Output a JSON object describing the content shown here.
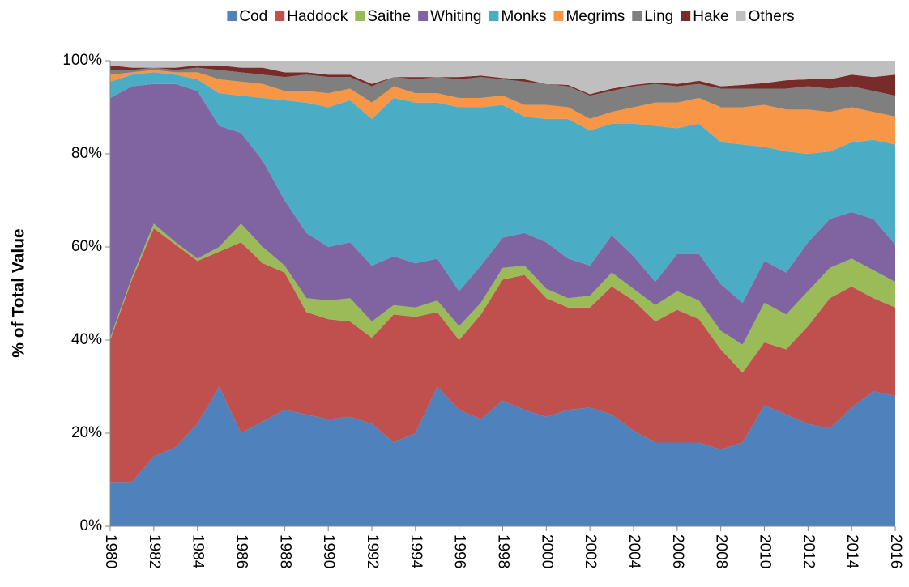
{
  "chart_data": {
    "type": "stacked_area",
    "y_label": "% of Total Value",
    "x": [
      1980,
      1981,
      1982,
      1983,
      1984,
      1985,
      1986,
      1987,
      1988,
      1989,
      1990,
      1991,
      1992,
      1993,
      1994,
      1995,
      1996,
      1997,
      1998,
      1999,
      2000,
      2001,
      2002,
      2003,
      2004,
      2005,
      2006,
      2007,
      2008,
      2009,
      2010,
      2011,
      2012,
      2013,
      2014,
      2015,
      2016
    ],
    "xlim": [
      1980,
      2016
    ],
    "xticks": [
      1980,
      1982,
      1984,
      1986,
      1988,
      1990,
      1992,
      1994,
      1996,
      1998,
      2000,
      2002,
      2004,
      2006,
      2008,
      2010,
      2012,
      2014,
      2016
    ],
    "ylim": [
      0,
      100
    ],
    "yticks": [
      {
        "value": 0,
        "label": "0%"
      },
      {
        "value": 20,
        "label": "20%"
      },
      {
        "value": 40,
        "label": "40%"
      },
      {
        "value": 60,
        "label": "60%"
      },
      {
        "value": 80,
        "label": "80%"
      },
      {
        "value": 100,
        "label": "100%"
      }
    ],
    "grid": false,
    "legend": "top",
    "series": [
      {
        "name": "Cod",
        "color": "#4f81bd",
        "values": [
          9.5,
          9.5,
          15,
          17,
          22,
          30,
          20,
          22.5,
          25,
          24,
          23,
          23.5,
          22,
          18,
          20,
          30,
          25,
          23,
          27,
          25,
          23.5,
          25,
          25.5,
          24,
          20.5,
          18,
          18,
          18,
          16.5,
          18,
          26,
          24,
          22,
          21,
          25.5,
          29,
          28
        ]
      },
      {
        "name": "Haddock",
        "color": "#c0504d",
        "values": [
          30.5,
          43.5,
          49,
          43.5,
          35,
          29,
          41,
          34,
          29.5,
          22,
          21.5,
          20.5,
          18.5,
          27.5,
          25,
          16,
          15,
          22.5,
          26,
          29,
          25.5,
          22,
          21.5,
          27.5,
          28,
          26,
          28.5,
          26.5,
          21.5,
          15,
          13.5,
          14,
          21,
          28,
          26,
          20,
          19
        ]
      },
      {
        "name": "Saithe",
        "color": "#9bbb59",
        "values": [
          0.5,
          0.5,
          1,
          0.5,
          0.5,
          1,
          4,
          3.5,
          1.5,
          3,
          4,
          5,
          3.5,
          2,
          2,
          2.5,
          3,
          2.5,
          2.5,
          2,
          2,
          2,
          2.5,
          3,
          2.5,
          3.5,
          4,
          4,
          4,
          6,
          8.5,
          7.5,
          7.5,
          6.5,
          6,
          6,
          5.5
        ]
      },
      {
        "name": "Whiting",
        "color": "#8064a2",
        "values": [
          51.5,
          41,
          30,
          34,
          36,
          26,
          19.5,
          18.5,
          14,
          14,
          11.5,
          12,
          12,
          10.5,
          9.5,
          9,
          7.5,
          8,
          6.5,
          7,
          10,
          8.5,
          6.5,
          8,
          7,
          5,
          8,
          10,
          10,
          9,
          9,
          9,
          10.5,
          10.5,
          10,
          11,
          8
        ]
      },
      {
        "name": "Monks",
        "color": "#4bacc6",
        "values": [
          3.5,
          2.5,
          2.5,
          2,
          2.5,
          7,
          8,
          13.5,
          21.5,
          28,
          30,
          30.5,
          31.5,
          34,
          34.5,
          33.5,
          39.5,
          34,
          28.5,
          25,
          26.5,
          30,
          29,
          24,
          28.5,
          33.5,
          27,
          28,
          30.5,
          34,
          24.5,
          26,
          19,
          14.5,
          15,
          17,
          21.5
        ]
      },
      {
        "name": "Megrims",
        "color": "#f79646",
        "values": [
          1.5,
          0.5,
          0.5,
          0.5,
          1.5,
          3,
          3,
          3,
          2,
          2.5,
          3,
          2.5,
          3.5,
          2.5,
          2,
          2,
          2,
          2,
          2,
          2.5,
          3,
          2.5,
          2.5,
          2.5,
          3.5,
          5,
          5.5,
          5.5,
          7.5,
          8,
          9,
          9,
          9.5,
          8.5,
          7.5,
          6,
          6
        ]
      },
      {
        "name": "Ling",
        "color": "#7f7f7f",
        "values": [
          1,
          0.5,
          0.5,
          0.5,
          1,
          2,
          2,
          2,
          3,
          3.5,
          3.5,
          2.5,
          3.5,
          2,
          3,
          3.5,
          4,
          4.5,
          3.5,
          5,
          4.5,
          4.5,
          5,
          4.5,
          4.5,
          4,
          3.5,
          3,
          4,
          4,
          3.5,
          4.5,
          5,
          5,
          4.5,
          4.5,
          4.5
        ]
      },
      {
        "name": "Hake",
        "color": "#772c2a",
        "values": [
          1,
          0.5,
          0,
          0.5,
          0.5,
          1,
          1,
          1.5,
          1,
          0.5,
          0.5,
          0.5,
          0.5,
          0,
          0.5,
          0,
          0.5,
          0.3,
          0.3,
          0.5,
          0,
          0.3,
          0.3,
          0.5,
          0.3,
          0.3,
          0.5,
          0.7,
          0.5,
          0.8,
          1.2,
          1.8,
          1.5,
          2,
          2.5,
          3,
          4.5
        ]
      },
      {
        "name": "Others",
        "color": "#bfbfbf",
        "values": [
          1,
          1.5,
          1.5,
          1.5,
          1,
          1,
          1.5,
          1.5,
          2.5,
          2.5,
          3,
          3,
          5,
          3.5,
          3.5,
          3.5,
          3.5,
          3.2,
          3.7,
          4,
          5,
          5.2,
          7.2,
          6,
          5.2,
          4.7,
          5,
          4.3,
          5.5,
          5.2,
          4.8,
          4.2,
          4,
          4,
          3,
          3.5,
          3
        ]
      }
    ]
  }
}
